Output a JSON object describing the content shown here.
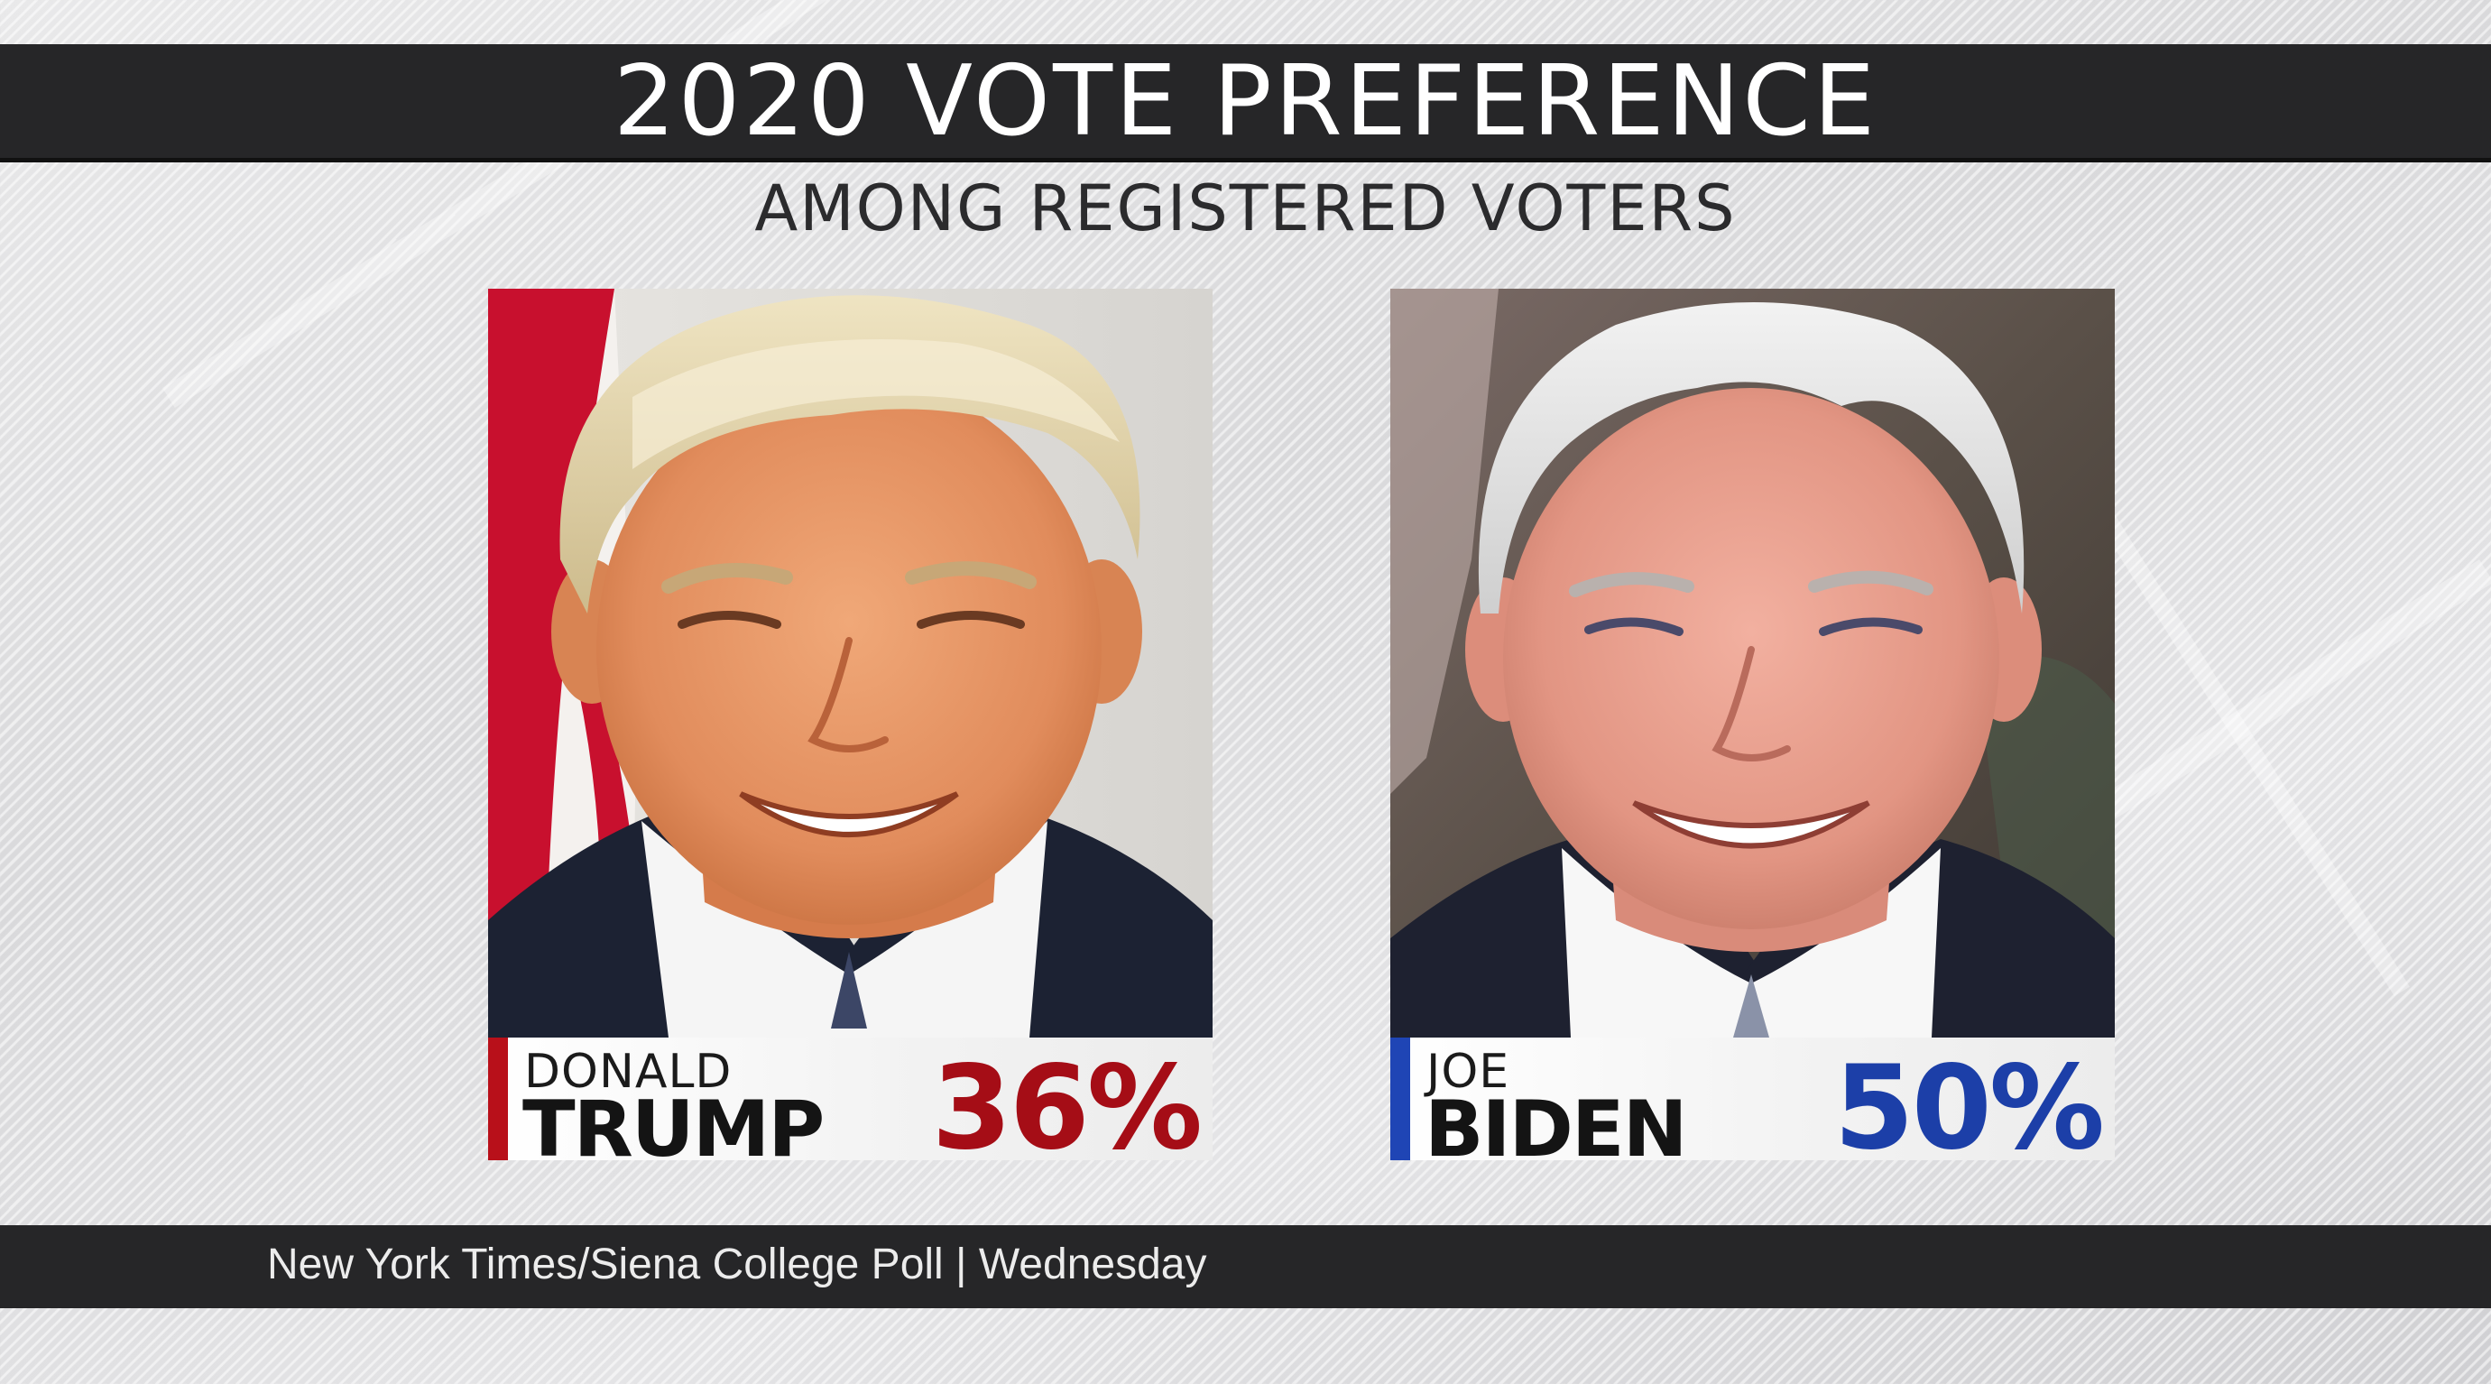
{
  "title": "2020 VOTE PREFERENCE",
  "subtitle": "AMONG REGISTERED VOTERS",
  "candidates": [
    {
      "first_name": "DONALD",
      "last_name": "TRUMP",
      "percent": "36%",
      "accent_color": "#b8101a",
      "percent_color": "#a50d16"
    },
    {
      "first_name": "JOE",
      "last_name": "BIDEN",
      "percent": "50%",
      "accent_color": "#1f45b5",
      "percent_color": "#1c3fa8"
    }
  ],
  "source": "New York Times/Siena College Poll | Wednesday"
}
